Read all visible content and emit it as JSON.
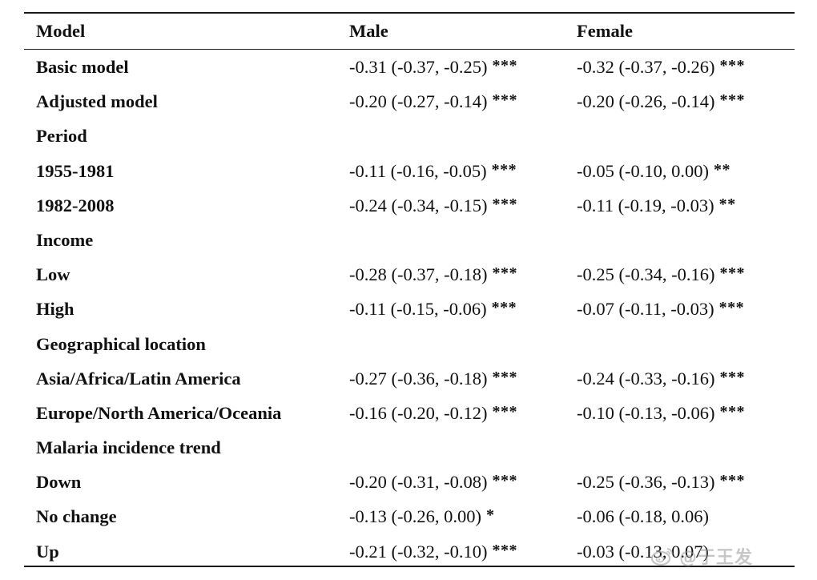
{
  "table": {
    "headers": {
      "model": "Model",
      "male": "Male",
      "female": "Female"
    },
    "rows": [
      {
        "label": "Basic model",
        "male": "-0.31 (-0.37, -0.25)",
        "male_sig": "***",
        "female": "-0.32 (-0.37, -0.26)",
        "female_sig": "***"
      },
      {
        "label": "Adjusted model",
        "male": "-0.20 (-0.27, -0.14)",
        "male_sig": "***",
        "female": "-0.20 (-0.26, -0.14)",
        "female_sig": "***"
      },
      {
        "label": "Period",
        "male": "",
        "male_sig": "",
        "female": "",
        "female_sig": ""
      },
      {
        "label": "1955-1981",
        "male": "-0.11 (-0.16, -0.05)",
        "male_sig": "***",
        "female": "-0.05 (-0.10, 0.00)",
        "female_sig": "**"
      },
      {
        "label": "1982-2008",
        "male": "-0.24 (-0.34, -0.15)",
        "male_sig": "***",
        "female": "-0.11 (-0.19, -0.03)",
        "female_sig": "**"
      },
      {
        "label": "Income",
        "male": "",
        "male_sig": "",
        "female": "",
        "female_sig": ""
      },
      {
        "label": "Low",
        "male": "-0.28 (-0.37, -0.18)",
        "male_sig": "***",
        "female": "-0.25 (-0.34, -0.16)",
        "female_sig": "***"
      },
      {
        "label": "High",
        "male": "-0.11 (-0.15, -0.06)",
        "male_sig": "***",
        "female": "-0.07 (-0.11, -0.03)",
        "female_sig": "***"
      },
      {
        "label": "Geographical location",
        "male": "",
        "male_sig": "",
        "female": "",
        "female_sig": ""
      },
      {
        "label": "Asia/Africa/Latin America",
        "male": "-0.27 (-0.36, -0.18)",
        "male_sig": "***",
        "female": "-0.24 (-0.33, -0.16)",
        "female_sig": "***"
      },
      {
        "label": "Europe/North America/Oceania",
        "male": "-0.16 (-0.20, -0.12)",
        "male_sig": "***",
        "female": "-0.10 (-0.13, -0.06)",
        "female_sig": "***"
      },
      {
        "label": "Malaria incidence trend",
        "male": "",
        "male_sig": "",
        "female": "",
        "female_sig": ""
      },
      {
        "label": "Down",
        "male": "-0.20 (-0.31, -0.08)",
        "male_sig": "***",
        "female": "-0.25 (-0.36, -0.13)",
        "female_sig": "***"
      },
      {
        "label": "No change",
        "male": "-0.13 (-0.26, 0.00)",
        "male_sig": "*",
        "female": "-0.06 (-0.18, 0.06)",
        "female_sig": ""
      },
      {
        "label": "Up",
        "male": "-0.21 (-0.32, -0.10)",
        "male_sig": "***",
        "female": "-0.03 (-0.13, 0.07)",
        "female_sig": ""
      }
    ]
  },
  "watermark": {
    "icon": "weibo-logo-icon",
    "text": "@于王发"
  }
}
